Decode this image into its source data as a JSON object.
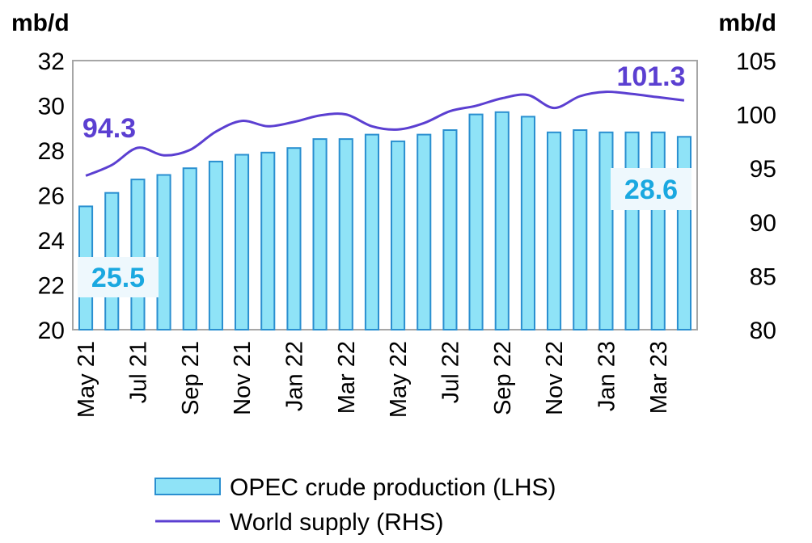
{
  "chart_data": {
    "type": "bar",
    "categories": [
      "May 21",
      "Jun 21",
      "Jul 21",
      "Aug 21",
      "Sep 21",
      "Oct 21",
      "Nov 21",
      "Dec 21",
      "Jan 22",
      "Feb 22",
      "Mar 22",
      "Apr 22",
      "May 22",
      "Jun 22",
      "Jul 22",
      "Aug 22",
      "Sep 22",
      "Oct 22",
      "Nov 22",
      "Dec 22",
      "Jan 23",
      "Feb 23",
      "Mar 23",
      "Apr 23"
    ],
    "x_tick_labels": [
      "May 21",
      "Jul 21",
      "Sep 21",
      "Nov 21",
      "Jan 22",
      "Mar 22",
      "May 22",
      "Jul 22",
      "Sep 22",
      "Nov 22",
      "Jan 23",
      "Mar 23"
    ],
    "series": [
      {
        "name": "OPEC crude production (LHS)",
        "type": "bar",
        "axis": "left",
        "color": "#8fe3f7",
        "edge_color": "#2a8fd0",
        "values": [
          25.5,
          26.1,
          26.7,
          26.9,
          27.2,
          27.5,
          27.8,
          27.9,
          28.1,
          28.5,
          28.5,
          28.7,
          28.4,
          28.7,
          28.9,
          29.6,
          29.7,
          29.5,
          28.8,
          28.9,
          28.8,
          28.8,
          28.8,
          28.6
        ]
      },
      {
        "name": "World supply (RHS)",
        "type": "line",
        "axis": "right",
        "color": "#5b3fd1",
        "values": [
          94.3,
          95.3,
          96.9,
          96.2,
          96.7,
          98.4,
          99.4,
          98.9,
          99.3,
          99.9,
          100.0,
          98.9,
          98.6,
          99.2,
          100.3,
          100.8,
          101.5,
          101.8,
          100.6,
          101.7,
          102.1,
          101.9,
          101.6,
          101.3
        ]
      }
    ],
    "y_left": {
      "label": "mb/d",
      "min": 20,
      "max": 32,
      "ticks": [
        "20",
        "22",
        "24",
        "26",
        "28",
        "30",
        "32"
      ]
    },
    "y_right": {
      "label": "mb/d",
      "min": 80,
      "max": 105,
      "ticks": [
        "80",
        "85",
        "90",
        "95",
        "100",
        "105"
      ]
    },
    "annotations": {
      "bar_first": "25.5",
      "bar_last": "28.6",
      "line_first": "94.3",
      "line_last": "101.3"
    },
    "grid": false,
    "legend_position": "bottom"
  }
}
